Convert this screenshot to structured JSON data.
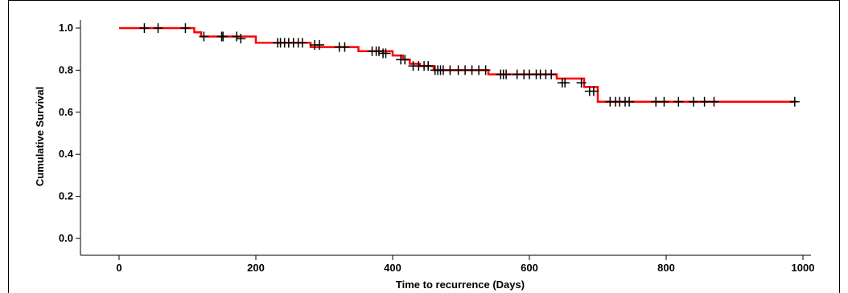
{
  "chart_data": {
    "type": "line",
    "title": "",
    "xlabel": "Time to recurrence (Days)",
    "ylabel": "Cumulative Survival",
    "xlim": [
      0,
      1000
    ],
    "ylim": [
      0.0,
      1.0
    ],
    "x_ticks": [
      "0",
      "200",
      "400",
      "600",
      "800",
      "1000"
    ],
    "y_ticks": [
      "0.0",
      "0.2",
      "0.4",
      "0.6",
      "0.8",
      "1.0"
    ],
    "x_tick_values": [
      0,
      200,
      400,
      600,
      800,
      1000
    ],
    "y_tick_values": [
      0.0,
      0.2,
      0.4,
      0.6,
      0.8,
      1.0
    ],
    "grid": false,
    "legend": "none",
    "series": [
      {
        "line_color": "#ff0000",
        "step_points": [
          [
            0,
            1.0
          ],
          [
            110,
            1.0
          ],
          [
            110,
            0.98
          ],
          [
            120,
            0.98
          ],
          [
            120,
            0.96
          ],
          [
            200,
            0.96
          ],
          [
            200,
            0.93
          ],
          [
            280,
            0.93
          ],
          [
            280,
            0.91
          ],
          [
            350,
            0.91
          ],
          [
            350,
            0.89
          ],
          [
            400,
            0.89
          ],
          [
            400,
            0.87
          ],
          [
            415,
            0.87
          ],
          [
            415,
            0.85
          ],
          [
            425,
            0.85
          ],
          [
            425,
            0.83
          ],
          [
            440,
            0.83
          ],
          [
            440,
            0.82
          ],
          [
            460,
            0.82
          ],
          [
            460,
            0.8
          ],
          [
            540,
            0.8
          ],
          [
            540,
            0.78
          ],
          [
            640,
            0.78
          ],
          [
            640,
            0.76
          ],
          [
            680,
            0.76
          ],
          [
            680,
            0.72
          ],
          [
            700,
            0.72
          ],
          [
            700,
            0.65
          ],
          [
            990,
            0.65
          ]
        ],
        "censor_points": [
          [
            37,
            1.0
          ],
          [
            57,
            1.0
          ],
          [
            97,
            1.0
          ],
          [
            124,
            0.96
          ],
          [
            150,
            0.96
          ],
          [
            152,
            0.96
          ],
          [
            172,
            0.96
          ],
          [
            178,
            0.95
          ],
          [
            232,
            0.93
          ],
          [
            236,
            0.93
          ],
          [
            242,
            0.93
          ],
          [
            248,
            0.93
          ],
          [
            255,
            0.93
          ],
          [
            262,
            0.93
          ],
          [
            268,
            0.93
          ],
          [
            286,
            0.92
          ],
          [
            293,
            0.92
          ],
          [
            322,
            0.91
          ],
          [
            330,
            0.91
          ],
          [
            370,
            0.89
          ],
          [
            376,
            0.89
          ],
          [
            380,
            0.89
          ],
          [
            386,
            0.88
          ],
          [
            390,
            0.88
          ],
          [
            412,
            0.85
          ],
          [
            418,
            0.85
          ],
          [
            430,
            0.82
          ],
          [
            438,
            0.82
          ],
          [
            446,
            0.82
          ],
          [
            452,
            0.82
          ],
          [
            462,
            0.8
          ],
          [
            466,
            0.8
          ],
          [
            470,
            0.8
          ],
          [
            474,
            0.8
          ],
          [
            484,
            0.8
          ],
          [
            496,
            0.8
          ],
          [
            506,
            0.8
          ],
          [
            516,
            0.8
          ],
          [
            526,
            0.8
          ],
          [
            536,
            0.8
          ],
          [
            558,
            0.78
          ],
          [
            562,
            0.78
          ],
          [
            566,
            0.78
          ],
          [
            582,
            0.78
          ],
          [
            592,
            0.78
          ],
          [
            600,
            0.78
          ],
          [
            610,
            0.78
          ],
          [
            616,
            0.78
          ],
          [
            624,
            0.78
          ],
          [
            632,
            0.78
          ],
          [
            648,
            0.74
          ],
          [
            652,
            0.74
          ],
          [
            676,
            0.74
          ],
          [
            688,
            0.7
          ],
          [
            694,
            0.7
          ],
          [
            718,
            0.65
          ],
          [
            726,
            0.65
          ],
          [
            732,
            0.65
          ],
          [
            740,
            0.65
          ],
          [
            746,
            0.65
          ],
          [
            785,
            0.65
          ],
          [
            797,
            0.65
          ],
          [
            818,
            0.65
          ],
          [
            840,
            0.65
          ],
          [
            856,
            0.65
          ],
          [
            870,
            0.65
          ],
          [
            988,
            0.65
          ]
        ]
      }
    ]
  }
}
